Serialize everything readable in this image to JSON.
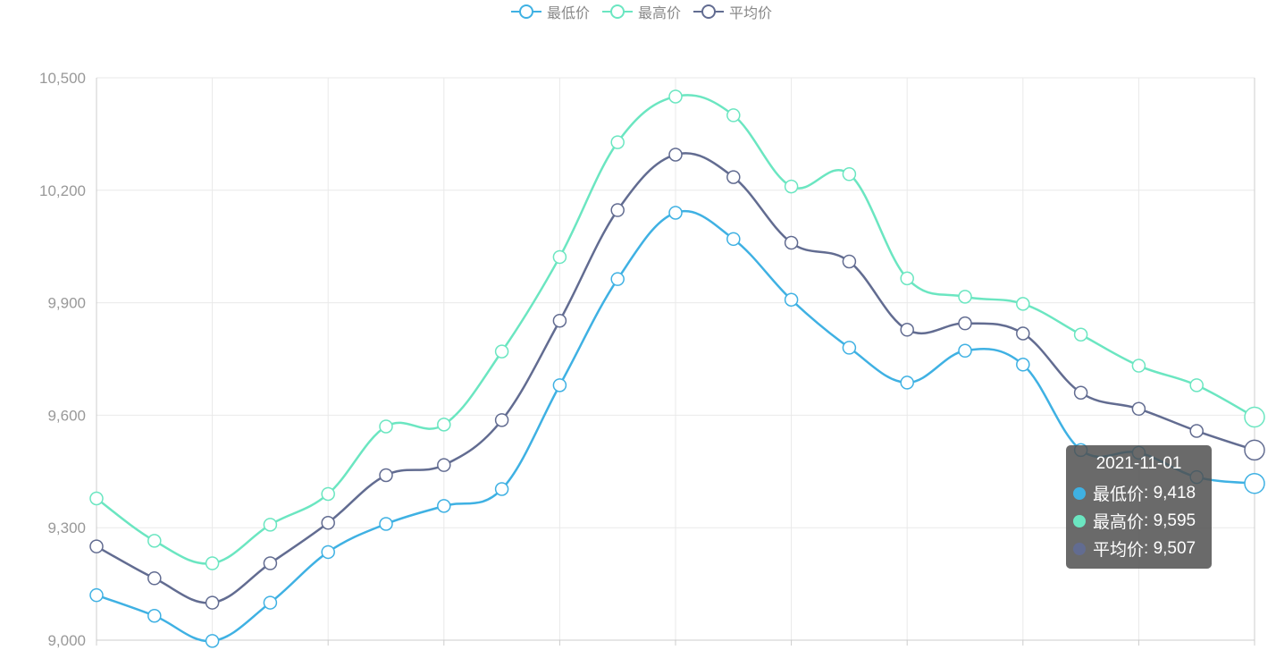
{
  "colors": {
    "series": [
      "#3fb1e3",
      "#6be6c1",
      "#626c91"
    ],
    "grid": "#e9e9e9",
    "axis": "#cccccc",
    "axis_label": "#999999"
  },
  "legend": {
    "items": [
      {
        "label": "最低价",
        "icon": "circle-line-icon"
      },
      {
        "label": "最高价",
        "icon": "circle-line-icon"
      },
      {
        "label": "平均价",
        "icon": "circle-line-icon"
      }
    ]
  },
  "tooltip": {
    "title": "2021-11-01",
    "rows": [
      {
        "name": "最低价",
        "value": "9,418"
      },
      {
        "name": "最高价",
        "value": "9,595"
      },
      {
        "name": "平均价",
        "value": "9,507"
      }
    ]
  },
  "chart_data": {
    "type": "line",
    "smooth": true,
    "x_count": 21,
    "ylim": [
      9000,
      10500
    ],
    "yticks": [
      9000,
      9300,
      9600,
      9900,
      10200,
      10500
    ],
    "ytick_labels": [
      "9,000",
      "9,300",
      "9,600",
      "9,900",
      "10,200",
      "10,500"
    ],
    "series": [
      {
        "name": "最低价",
        "values": [
          9120,
          9065,
          8998,
          9100,
          9235,
          9310,
          9358,
          9403,
          9680,
          9963,
          10140,
          10070,
          9908,
          9780,
          9687,
          9772,
          9735,
          9507,
          9500,
          9435,
          9418
        ]
      },
      {
        "name": "最高价",
        "values": [
          9378,
          9265,
          9205,
          9308,
          9390,
          9570,
          9575,
          9770,
          10022,
          10328,
          10450,
          10400,
          10210,
          10243,
          9965,
          9916,
          9897,
          9815,
          9732,
          9680,
          9595
        ]
      },
      {
        "name": "平均价",
        "values": [
          9250,
          9165,
          9100,
          9205,
          9313,
          9440,
          9467,
          9587,
          9852,
          10147,
          10295,
          10235,
          10060,
          10010,
          9828,
          9845,
          9818,
          9660,
          9617,
          9558,
          9507
        ]
      }
    ]
  }
}
